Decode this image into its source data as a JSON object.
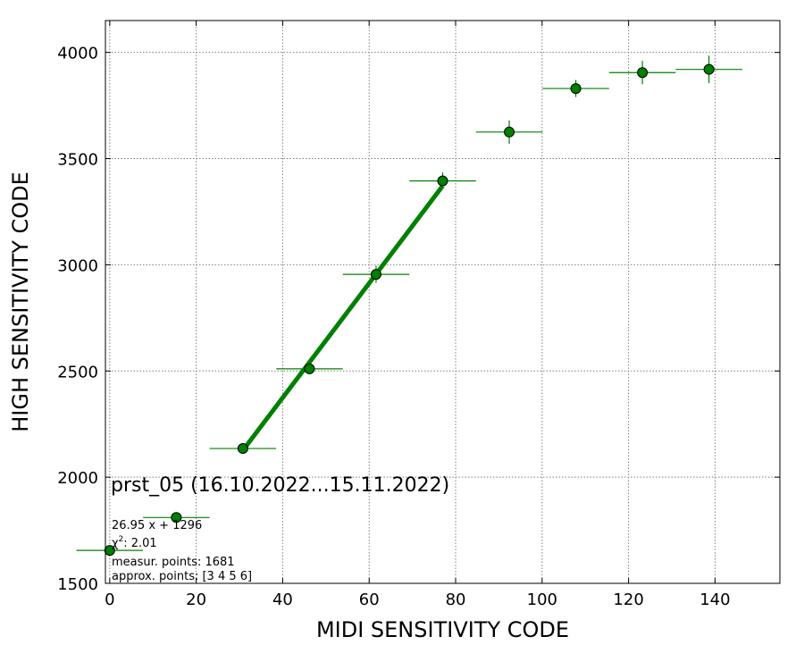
{
  "chart_data": {
    "type": "scatter",
    "xlabel": "MIDI SENSITIVITY CODE",
    "ylabel": "HIGH SENSITIVITY CODE",
    "xlim": [
      -1,
      155
    ],
    "ylim": [
      1500,
      4150
    ],
    "xticks": [
      0,
      20,
      40,
      60,
      80,
      100,
      120,
      140
    ],
    "yticks": [
      1500,
      2000,
      2500,
      3000,
      3500,
      4000
    ],
    "grid": true,
    "color": "#008000",
    "points": [
      {
        "x": 0,
        "y": 1655,
        "xerr": 7.7,
        "yerr": 10
      },
      {
        "x": 15.4,
        "y": 1810,
        "xerr": 7.7,
        "yerr": 10
      },
      {
        "x": 30.8,
        "y": 2135,
        "xerr": 7.7,
        "yerr": 10
      },
      {
        "x": 46.2,
        "y": 2510,
        "xerr": 7.7,
        "yerr": 12
      },
      {
        "x": 61.6,
        "y": 2955,
        "xerr": 7.7,
        "yerr": 40
      },
      {
        "x": 77.0,
        "y": 3395,
        "xerr": 7.7,
        "yerr": 40
      },
      {
        "x": 92.4,
        "y": 3625,
        "xerr": 7.7,
        "yerr": 55
      },
      {
        "x": 107.8,
        "y": 3830,
        "xerr": 7.7,
        "yerr": 40
      },
      {
        "x": 123.2,
        "y": 3905,
        "xerr": 7.7,
        "yerr": 55
      },
      {
        "x": 138.6,
        "y": 3920,
        "xerr": 7.7,
        "yerr": 65
      }
    ],
    "fit": {
      "slope": 26.95,
      "intercept": 1296,
      "x_range": [
        30.8,
        77.0
      ]
    },
    "annotations": {
      "title": "prst_05 (16.10.2022...15.11.2022)",
      "equation": "26.95 x + 1296",
      "chi2_label": "χ",
      "chi2_value": ": 2.01",
      "measured": "measur. points: 1681",
      "approx": "approx. points: [3 4 5 6]"
    }
  }
}
